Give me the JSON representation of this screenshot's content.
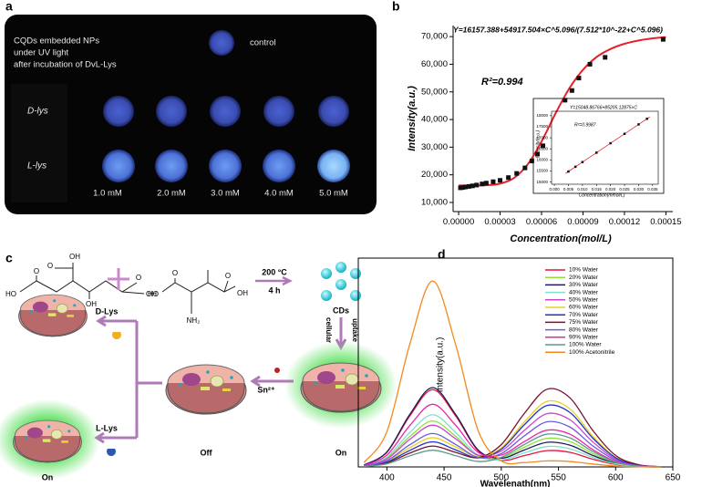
{
  "panel_labels": [
    "a",
    "b",
    "c",
    "d"
  ],
  "panel_a": {
    "caption": [
      "CQDs embedded NPs",
      "under UV light",
      "after incubation of DvL-Lys"
    ],
    "control": "control",
    "rows": [
      "D-lys",
      "L-lys"
    ],
    "concentrations": [
      "1.0 mM",
      "2.0 mM",
      "3.0 mM",
      "4.0 mM",
      "5.0 mM"
    ]
  },
  "chart_data": [
    {
      "type": "scatter",
      "equation": "Y=16157.388+54917.504×C^5.096/(7.512*10^-22+C^5.096)",
      "r_squared": "R²=0.994",
      "x_label": "Concentration(mol/L)",
      "y_label": "Intensity(a.u.)",
      "xlim": [
        -4e-06,
        0.000155
      ],
      "ylim": [
        6700,
        74000
      ],
      "xticks": [
        {
          "value": 0,
          "label": "0.00000"
        },
        3e-05,
        6e-05,
        9e-05,
        0.00012,
        0.00015
      ],
      "yticks": [
        {
          "value": 10000,
          "label": "10,000"
        },
        {
          "value": 20000,
          "label": "20,000"
        },
        {
          "value": 30000,
          "label": "30,000"
        },
        {
          "value": 40000,
          "label": "40,000"
        },
        {
          "value": 50000,
          "label": "50,000"
        },
        {
          "value": 60000,
          "label": "60,000"
        },
        {
          "value": 70000,
          "label": "70,000"
        }
      ],
      "series": [
        {
          "mode": "line",
          "color": "#e8202a",
          "x": [
            0,
            1e-05,
            2e-05,
            3e-05,
            4e-05,
            5e-05,
            6e-05,
            7e-05,
            8e-05,
            9e-05,
            0.0001,
            0.00011,
            0.00012,
            0.00013,
            0.00014,
            0.00015
          ],
          "values": [
            16157,
            16157,
            16240,
            16805,
            18850,
            23790,
            32030,
            42080,
            51200,
            58000,
            62680,
            65530,
            67400,
            68570,
            69330,
            69850
          ]
        },
        {
          "mode": "markers",
          "color": "#111111",
          "x": [
            1.3e-06,
            3e-06,
            5e-06,
            7.5e-06,
            1e-05,
            1.3e-05,
            1.7e-05,
            2e-05,
            2.5e-05,
            3e-05,
            3.6e-05,
            4.2e-05,
            4.8e-05,
            5.3e-05,
            5.7e-05,
            6.1e-05,
            7.7e-05,
            8.2e-05,
            8.7e-05,
            9.5e-05,
            0.000106,
            0.000148
          ],
          "values": [
            15300,
            15400,
            15600,
            15800,
            16000,
            16300,
            16700,
            17000,
            17500,
            18000,
            19000,
            20500,
            22500,
            25000,
            27500,
            30500,
            47000,
            50500,
            55000,
            60000,
            62500,
            69000
          ]
        }
      ],
      "inset": {
        "type": "scatter",
        "equation": "Y=15048.86766+85205.12875×C",
        "r_squared": "R²=0.9987",
        "x_label": "Concentration(mmol/L)",
        "y_label": "Intensity(a.u.)",
        "xlim": [
          -0.001,
          0.037
        ],
        "ylim": [
          14900,
          18200
        ],
        "xticks": [
          {
            "value": 0,
            "label": "0.000"
          },
          0.005,
          {
            "value": 0.01,
            "label": "0.010"
          },
          0.015,
          {
            "value": 0.02,
            "label": "0.020"
          },
          0.025,
          {
            "value": 0.03,
            "label": "0.030"
          },
          0.035
        ],
        "yticks": [
          15000,
          15500,
          16000,
          16500,
          17000,
          17500,
          18000
        ],
        "series": [
          {
            "mode": "line",
            "color": "#e8202a",
            "x": [
              0.004,
              0.034
            ],
            "values": [
              15390,
              17946
            ]
          },
          {
            "mode": "markers",
            "color": "#111111",
            "x": [
              0.005,
              0.0075,
              0.01,
              0.015,
              0.02,
              0.025,
              0.03,
              0.033
            ],
            "values": [
              15475,
              15688,
              15901,
              16327,
              16753,
              17179,
              17605,
              17861
            ]
          }
        ]
      }
    },
    {
      "type": "line",
      "x_label": "Wavelenath(nm)",
      "y_label": "Intensity(a.u.)",
      "xlim": [
        375,
        650
      ],
      "ylim": [
        0,
        100
      ],
      "xticks": [
        400,
        450,
        500,
        550,
        600,
        650
      ],
      "legend": "upper right",
      "x": [
        380,
        400,
        420,
        440,
        460,
        480,
        500,
        520,
        540,
        560,
        580,
        600,
        620,
        640
      ],
      "series": [
        {
          "name": "10% Water",
          "color": "#e8143c",
          "values": [
            0.9,
            7.0,
            24.4,
            37,
            24.5,
            7.6,
            3.1,
            5.4,
            7.8,
            7.0,
            3.7,
            1.2,
            0.2,
            0
          ]
        },
        {
          "name": "20% Water",
          "color": "#8ee03a",
          "values": [
            0.5,
            4.2,
            14.5,
            22,
            14.7,
            5.1,
            4.4,
            9.4,
            13.7,
            12.2,
            6.4,
            2.0,
            0.4,
            0
          ]
        },
        {
          "name": "30% Water",
          "color": "#1c1c5a",
          "values": [
            0.9,
            7.2,
            25.1,
            38,
            25.2,
            8.0,
            4.2,
            8.1,
            11.8,
            10.4,
            5.5,
            1.7,
            0.3,
            0
          ]
        },
        {
          "name": "40% Water",
          "color": "#7fe0d0",
          "values": [
            0.6,
            4.8,
            16.5,
            25,
            16.6,
            5.4,
            3.4,
            6.7,
            9.8,
            8.7,
            4.6,
            1.5,
            0.3,
            0
          ]
        },
        {
          "name": "50% Water",
          "color": "#cc44cc",
          "values": [
            0.5,
            3.8,
            13.2,
            20,
            13.5,
            5.6,
            7.6,
            17.4,
            25.5,
            22.6,
            12.0,
            3.8,
            0.7,
            0.1
          ]
        },
        {
          "name": "60% Water",
          "color": "#e6d21c",
          "values": [
            0.3,
            2.7,
            9.2,
            14,
            9.6,
            4.8,
            9.1,
            21.4,
            31.4,
            27.8,
            14.7,
            4.6,
            0.9,
            0.1
          ]
        },
        {
          "name": "70% Water",
          "color": "#2233cc",
          "values": [
            0.3,
            2.3,
            7.9,
            12,
            8.2,
            4.3,
            8.5,
            20.1,
            29.4,
            26.1,
            13.8,
            4.4,
            0.8,
            0.1
          ]
        },
        {
          "name": "75% Water",
          "color": "#7a1030",
          "values": [
            0.2,
            1.9,
            6.6,
            10,
            7.0,
            4.5,
            10.7,
            25.5,
            37.2,
            33.1,
            17.5,
            5.5,
            1.1,
            0.1
          ]
        },
        {
          "name": "80% Water",
          "color": "#6a5ae0",
          "values": [
            0.4,
            3.0,
            10.6,
            16,
            10.8,
            4.5,
            6.4,
            14.8,
            21.6,
            19.1,
            10.1,
            3.2,
            0.6,
            0.1
          ]
        },
        {
          "name": "90% Water",
          "color": "#ee22aa",
          "values": [
            0.7,
            5.7,
            19.8,
            30,
            20.0,
            6.9,
            5.7,
            12.1,
            17.6,
            15.7,
            8.3,
            2.6,
            0.5,
            0.1
          ]
        },
        {
          "name": "100% Water",
          "color": "#5f9a8a",
          "values": [
            0.2,
            1.5,
            5.3,
            8,
            5.4,
            2.6,
            4.6,
            10.7,
            15.7,
            13.9,
            7.4,
            2.3,
            0.4,
            0
          ]
        },
        {
          "name": "100% Acetonitrile",
          "color": "#f28a1e",
          "values": [
            2.1,
            16.9,
            58.7,
            89,
            58.8,
            17.1,
            2.9,
            2.1,
            2.9,
            2.6,
            1.4,
            0.4,
            0.1,
            0
          ]
        }
      ]
    }
  ],
  "panel_c": {
    "citric_acid": [
      "O",
      "OH",
      "HO",
      "O",
      "OH",
      "O",
      "OH"
    ],
    "aspartic_acid": [
      "HO",
      "O",
      "O",
      "OH",
      "NH₂"
    ],
    "conditions": [
      "200 °C",
      "4 h"
    ],
    "product": "CDs",
    "uptake": [
      "cellular",
      "uptake"
    ],
    "ion": "Sn²⁺",
    "branches": [
      "D-Lys",
      "L-Lys"
    ],
    "states": [
      "On",
      "Off",
      "On"
    ]
  }
}
